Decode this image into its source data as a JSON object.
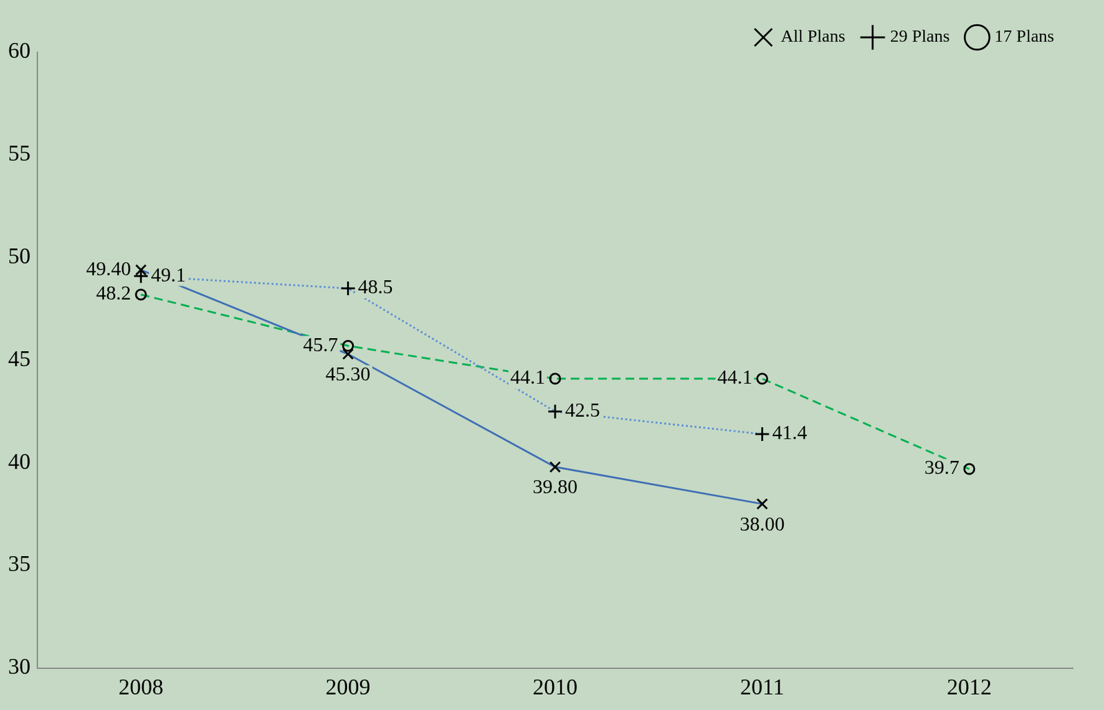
{
  "chart_data": {
    "type": "line",
    "categories": [
      "2008",
      "2009",
      "2010",
      "2011",
      "2012"
    ],
    "series": [
      {
        "name": "All Plans",
        "color": "#3f6fb5",
        "marker": "x",
        "line_style": "solid",
        "values": [
          49.4,
          45.3,
          39.8,
          38.0,
          null
        ],
        "value_labels": [
          "49.40",
          "45.30",
          "39.80",
          "38.00",
          null
        ]
      },
      {
        "name": "29 Plans",
        "color": "#5b8fd8",
        "marker": "+",
        "line_style": "dotted",
        "values": [
          49.1,
          48.5,
          42.5,
          41.4,
          null
        ]
      },
      {
        "name": "17 Plans",
        "color": "#00b050",
        "marker": "o",
        "line_style": "dashed",
        "values": [
          48.2,
          45.7,
          44.1,
          44.1,
          39.7
        ]
      }
    ],
    "ylim": [
      30,
      60
    ],
    "yticks": [
      30,
      35,
      40,
      45,
      50,
      55,
      60
    ],
    "grid": false,
    "legend": "top right",
    "data_labels": true
  }
}
